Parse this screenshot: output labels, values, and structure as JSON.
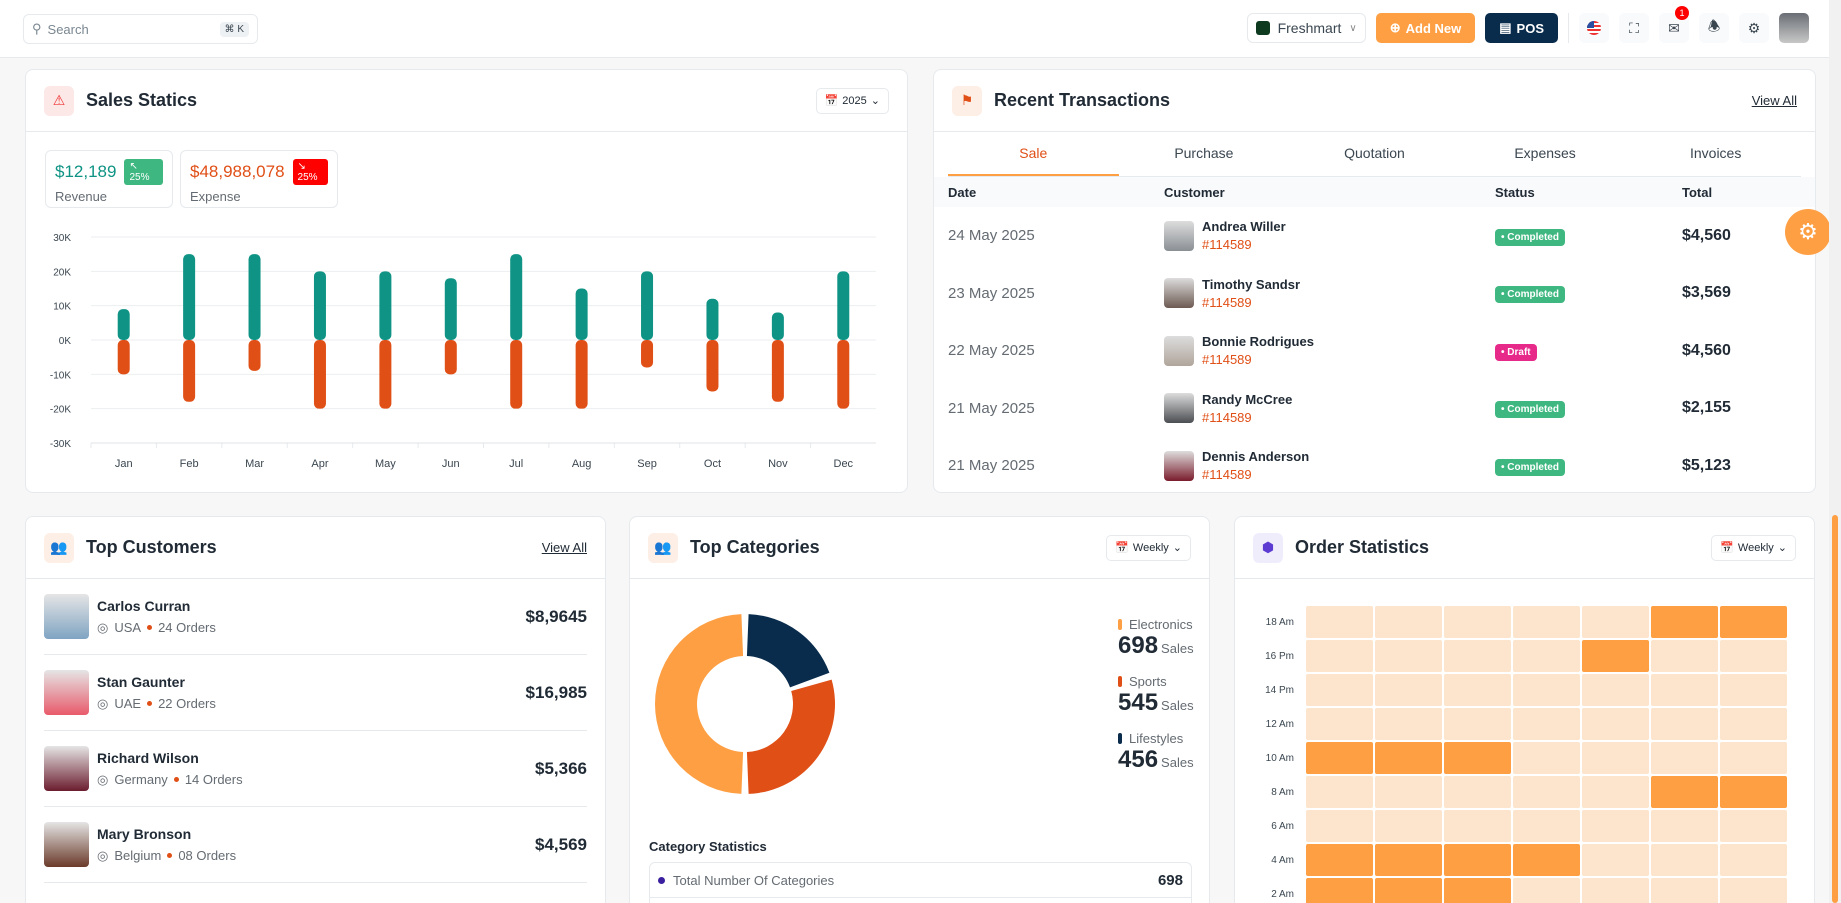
{
  "header": {
    "search_placeholder": "Search",
    "search_shortcut": "⌘ K",
    "store": "Freshmart",
    "add_new": "Add New",
    "pos": "POS",
    "mail_badge": "1",
    "icons": [
      "flag-us-icon",
      "fullscreen-icon",
      "mail-icon",
      "bell-icon",
      "gear-icon"
    ]
  },
  "sales": {
    "title": "Sales Statics",
    "year": "2025",
    "revenue": {
      "value": "$12,189",
      "change": "↖ 25%",
      "label": "Revenue"
    },
    "expense": {
      "value": "$48,988,078",
      "change": "↘ 25%",
      "label": "Expense"
    }
  },
  "chart_data": {
    "type": "bar",
    "title": "Sales Statics",
    "categories": [
      "Jan",
      "Feb",
      "Mar",
      "Apr",
      "May",
      "Jun",
      "Jul",
      "Aug",
      "Sep",
      "Oct",
      "Nov",
      "Dec"
    ],
    "series": [
      {
        "name": "Revenue",
        "color": "#0e9384",
        "values": [
          9000,
          25000,
          25000,
          20000,
          20000,
          18000,
          25000,
          15000,
          20000,
          12000,
          8000,
          20000
        ]
      },
      {
        "name": "Expense",
        "color": "#e04f16",
        "values": [
          -10000,
          -18000,
          -9000,
          -20000,
          -20000,
          -10000,
          -20000,
          -20000,
          -8000,
          -15000,
          -18000,
          -20000
        ]
      }
    ],
    "ylim": [
      -30000,
      30000
    ],
    "yticks": [
      "30K",
      "20K",
      "10K",
      "0K",
      "-10K",
      "-20K",
      "-30K"
    ],
    "grid": true
  },
  "transactions": {
    "title": "Recent Transactions",
    "view_all": "View All",
    "tabs": [
      "Sale",
      "Purchase",
      "Quotation",
      "Expenses",
      "Invoices"
    ],
    "columns": [
      "Date",
      "Customer",
      "Status",
      "Total"
    ],
    "rows": [
      {
        "date": "24 May 2025",
        "name": "Andrea Willer",
        "id": "#114589",
        "status": "Completed",
        "total": "$4,560"
      },
      {
        "date": "23 May 2025",
        "name": "Timothy Sandsr",
        "id": "#114589",
        "status": "Completed",
        "total": "$3,569"
      },
      {
        "date": "22 May 2025",
        "name": "Bonnie Rodrigues",
        "id": "#114589",
        "status": "Draft",
        "total": "$4,560"
      },
      {
        "date": "21 May 2025",
        "name": "Randy McCree",
        "id": "#114589",
        "status": "Completed",
        "total": "$2,155"
      },
      {
        "date": "21 May 2025",
        "name": "Dennis Anderson",
        "id": "#114589",
        "status": "Completed",
        "total": "$5,123"
      }
    ]
  },
  "customers": {
    "title": "Top Customers",
    "view_all": "View All",
    "items": [
      {
        "name": "Carlos Curran",
        "country": "USA",
        "orders": "24 Orders",
        "amount": "$8,9645"
      },
      {
        "name": "Stan Gaunter",
        "country": "UAE",
        "orders": "22 Orders",
        "amount": "$16,985"
      },
      {
        "name": "Richard Wilson",
        "country": "Germany",
        "orders": "14 Orders",
        "amount": "$5,366"
      },
      {
        "name": "Mary Bronson",
        "country": "Belgium",
        "orders": "08 Orders",
        "amount": "$4,569"
      }
    ]
  },
  "categories": {
    "title": "Top Categories",
    "period": "Weekly",
    "legend": [
      {
        "name": "Electronics",
        "value": "698",
        "unit": "Sales",
        "color": "#fe9f43"
      },
      {
        "name": "Sports",
        "value": "545",
        "unit": "Sales",
        "color": "#e04f16"
      },
      {
        "name": "Lifestyles",
        "value": "456",
        "unit": "Sales",
        "color": "#092c4c"
      }
    ],
    "donut_shares": [
      {
        "name": "Electronics",
        "value": 50,
        "color": "#fe9f43"
      },
      {
        "name": "Lifestyles",
        "value": 20,
        "color": "#092c4c"
      },
      {
        "name": "Sports",
        "value": 30,
        "color": "#e04f16"
      }
    ],
    "stats_title": "Category Statistics",
    "stats": [
      {
        "label": "Total Number Of Categories",
        "value": "698"
      }
    ]
  },
  "orders": {
    "title": "Order Statistics",
    "period": "Weekly",
    "rows": [
      "18 Am",
      "16 Pm",
      "14 Pm",
      "12 Am",
      "10 Am",
      "8 Am",
      "6 Am",
      "4 Am",
      "2 Am"
    ],
    "high": [
      [
        0,
        0,
        0,
        0,
        0,
        1,
        1
      ],
      [
        0,
        0,
        0,
        0,
        1,
        0,
        0
      ],
      [
        0,
        0,
        0,
        0,
        0,
        0,
        0
      ],
      [
        0,
        0,
        0,
        0,
        0,
        0,
        0
      ],
      [
        1,
        1,
        1,
        0,
        0,
        0,
        0
      ],
      [
        0,
        0,
        0,
        0,
        0,
        1,
        1
      ],
      [
        0,
        0,
        0,
        0,
        0,
        0,
        0
      ],
      [
        1,
        1,
        1,
        1,
        0,
        0,
        0
      ],
      [
        1,
        1,
        1,
        0,
        0,
        0,
        0
      ]
    ]
  }
}
